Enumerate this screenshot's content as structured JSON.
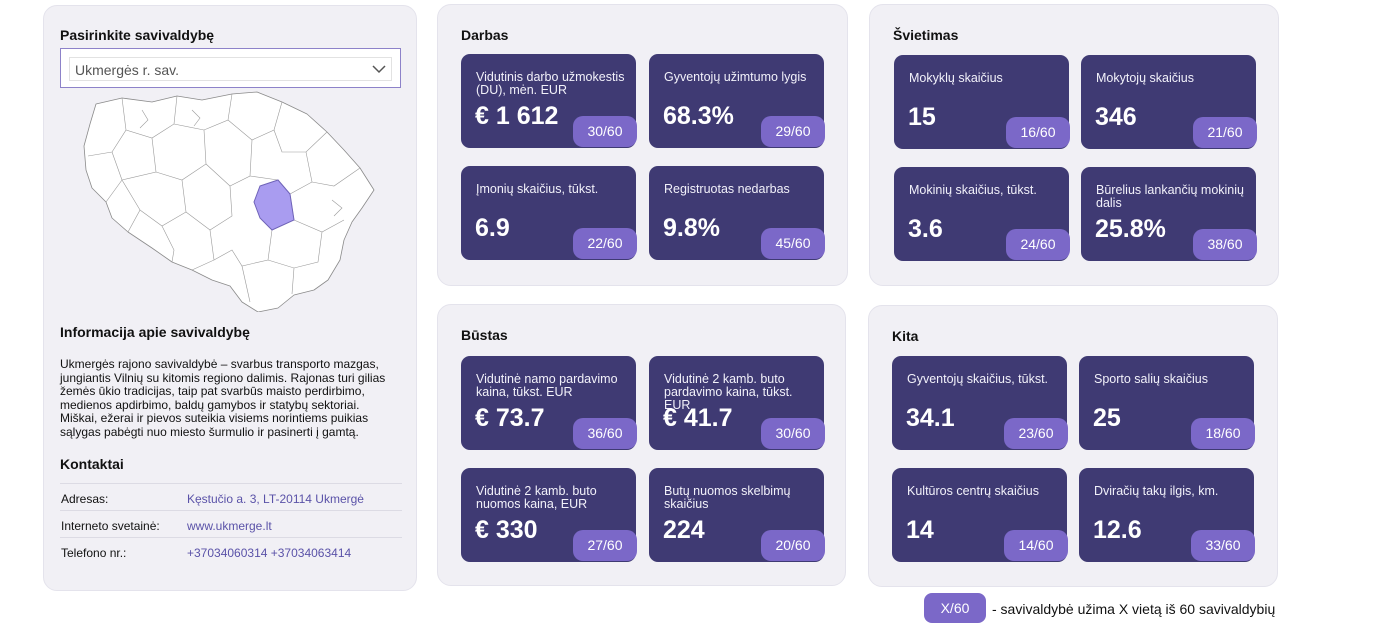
{
  "selector": {
    "label": "Pasirinkite savivaldybę",
    "selected": "Ukmergės r. sav."
  },
  "info": {
    "title": "Informacija apie savivaldybę",
    "text": "Ukmergės rajono savivaldybė – svarbus transporto mazgas, jungiantis Vilnių su kitomis regiono dalimis. Rajonas turi gilias žemės ūkio tradicijas, taip pat svarbūs maisto perdirbimo, medienos apdirbimo, baldų gamybos ir statybų sektoriai. Miškai, ežerai ir pievos suteikia visiems norintiems puikias sąlygas pabėgti nuo miesto šurmulio ir pasinerti į gamtą."
  },
  "contacts": {
    "title": "Kontaktai",
    "rows": [
      {
        "key": "Adresas:",
        "value": "Kęstučio a. 3, LT-20114 Ukmergė"
      },
      {
        "key": "Interneto svetainė:",
        "value": "www.ukmerge.lt"
      },
      {
        "key": "Telefono nr.:",
        "value": "+37034060314 +37034063414"
      }
    ]
  },
  "panels": {
    "darbas": {
      "title": "Darbas",
      "cards": [
        {
          "label": "Vidutinis darbo užmokestis (DU), mėn. EUR",
          "value": "€ 1 612",
          "rank": "30/60"
        },
        {
          "label": "Gyventojų užimtumo lygis",
          "value": "68.3%",
          "rank": "29/60"
        },
        {
          "label": "Įmonių skaičius, tūkst.",
          "value": "6.9",
          "rank": "22/60"
        },
        {
          "label": "Registruotas nedarbas",
          "value": "9.8%",
          "rank": "45/60"
        }
      ]
    },
    "svietimas": {
      "title": "Švietimas",
      "cards": [
        {
          "label": "Mokyklų skaičius",
          "value": "15",
          "rank": "16/60"
        },
        {
          "label": "Mokytojų skaičius",
          "value": "346",
          "rank": "21/60"
        },
        {
          "label": "Mokinių skaičius, tūkst.",
          "value": "3.6",
          "rank": "24/60"
        },
        {
          "label": "Būrelius lankančių mokinių dalis",
          "value": "25.8%",
          "rank": "38/60"
        }
      ]
    },
    "bustas": {
      "title": "Būstas",
      "cards": [
        {
          "label": "Vidutinė namo pardavimo kaina, tūkst. EUR",
          "value": "€ 73.7",
          "rank": "36/60"
        },
        {
          "label": "Vidutinė 2 kamb. buto pardavimo kaina, tūkst. EUR",
          "value": "€ 41.7",
          "rank": "30/60"
        },
        {
          "label": "Vidutinė 2 kamb. buto nuomos kaina, EUR",
          "value": "€ 330",
          "rank": "27/60"
        },
        {
          "label": "Butų nuomos skelbimų skaičius",
          "value": "224",
          "rank": "20/60"
        }
      ]
    },
    "kita": {
      "title": "Kita",
      "cards": [
        {
          "label": "Gyventojų skaičius, tūkst.",
          "value": "34.1",
          "rank": "23/60"
        },
        {
          "label": "Sporto salių skaičius",
          "value": "25",
          "rank": "18/60"
        },
        {
          "label": "Kultūros centrų skaičius",
          "value": "14",
          "rank": "14/60"
        },
        {
          "label": "Dviračių takų ilgis, km.",
          "value": "12.6",
          "rank": "33/60"
        }
      ]
    }
  },
  "legend": {
    "badge": "X/60",
    "text": "- savivaldybė užima X vietą iš 60 savivaldybių"
  },
  "colors": {
    "card": "#3f3a73",
    "rank": "#7b68c8",
    "highlight": "#a99cf0",
    "link": "#5a52a8"
  },
  "icons": {
    "dropdown": "chevron-down-icon",
    "map": "lithuania-municipalities-map"
  }
}
